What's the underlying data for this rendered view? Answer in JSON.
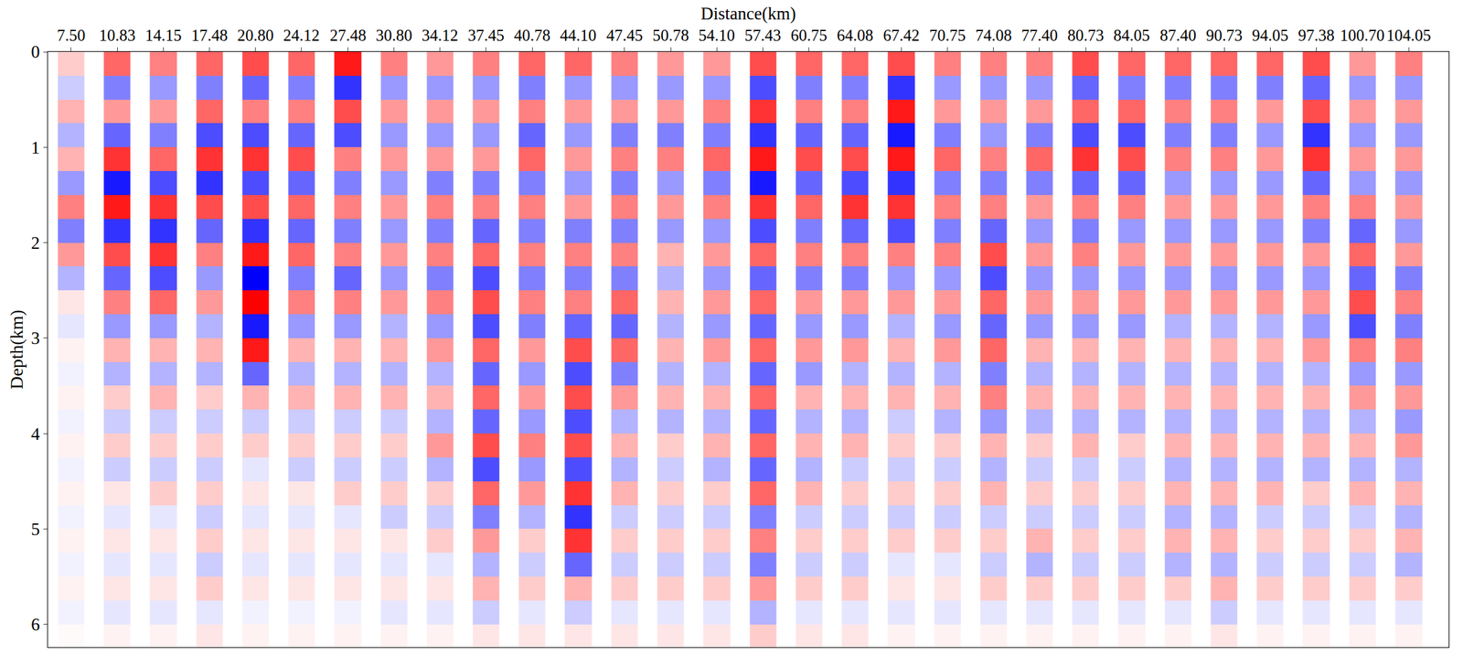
{
  "chart_data": {
    "type": "heatmap",
    "xlabel": "Distance(km)",
    "ylabel": "Depth(km)",
    "x": [
      7.5,
      10.83,
      14.15,
      17.48,
      20.8,
      24.12,
      27.48,
      30.8,
      34.12,
      37.45,
      40.78,
      44.1,
      47.45,
      50.78,
      54.1,
      57.43,
      60.75,
      64.08,
      67.42,
      70.75,
      74.08,
      77.4,
      80.73,
      84.05,
      87.4,
      90.73,
      94.05,
      97.38,
      100.7,
      104.05
    ],
    "y": [
      0.125,
      0.375,
      0.625,
      0.875,
      1.125,
      1.375,
      1.625,
      1.875,
      2.125,
      2.375,
      2.625,
      2.875,
      3.125,
      3.375,
      3.625,
      3.875,
      4.125,
      4.375,
      4.625,
      4.875,
      5.125,
      5.375,
      5.625,
      5.875,
      6.125
    ],
    "xlim": [
      5.82,
      106.94
    ],
    "ylim": [
      0,
      6.24
    ],
    "xticks": [
      {
        "value": 7.5,
        "label": "7.50"
      },
      10.83,
      14.15,
      17.48,
      {
        "value": 20.8,
        "label": "20.80"
      },
      24.12,
      27.48,
      {
        "value": 30.8,
        "label": "30.80"
      },
      34.12,
      37.45,
      40.78,
      {
        "value": 44.1,
        "label": "44.10"
      },
      47.45,
      50.78,
      {
        "value": 54.1,
        "label": "54.10"
      },
      57.43,
      60.75,
      64.08,
      67.42,
      70.75,
      74.08,
      {
        "value": 77.4,
        "label": "77.40"
      },
      80.73,
      84.05,
      {
        "value": 87.4,
        "label": "87.40"
      },
      90.73,
      94.05,
      97.38,
      {
        "value": 100.7,
        "label": "100.70"
      },
      104.05
    ],
    "yticks": [
      0,
      1,
      2,
      3,
      4,
      5,
      6
    ],
    "zlim": [
      -1,
      1
    ],
    "colors": [
      "#0000ff",
      "#ffffff",
      "#ff0000"
    ],
    "cells": [
      [
        0.2,
        -0.2,
        0.3,
        -0.3,
        0.3,
        -0.4,
        0.5,
        -0.5,
        0.4,
        -0.3,
        0.1,
        -0.1,
        0.05,
        -0.05,
        0.05,
        -0.05,
        0.05,
        -0.05,
        0.05,
        -0.05,
        0.05,
        -0.05,
        0.05,
        -0.05,
        0.02
      ],
      [
        0.6,
        -0.5,
        0.4,
        -0.6,
        0.8,
        -0.9,
        0.9,
        -0.8,
        0.7,
        -0.6,
        0.5,
        -0.4,
        0.3,
        -0.3,
        0.2,
        -0.2,
        0.2,
        -0.2,
        0.1,
        -0.1,
        0.1,
        -0.1,
        0.1,
        -0.1,
        0.05
      ],
      [
        0.5,
        -0.4,
        0.4,
        -0.5,
        0.6,
        -0.7,
        0.8,
        -0.8,
        0.8,
        -0.7,
        0.6,
        -0.4,
        0.3,
        -0.3,
        0.3,
        -0.2,
        0.2,
        -0.2,
        0.2,
        -0.1,
        0.1,
        -0.1,
        0.1,
        -0.1,
        0.05
      ],
      [
        0.6,
        -0.5,
        0.6,
        -0.7,
        0.8,
        -0.8,
        0.7,
        -0.6,
        0.5,
        -0.4,
        0.4,
        -0.3,
        0.3,
        -0.3,
        0.2,
        -0.2,
        0.2,
        -0.2,
        0.2,
        -0.2,
        0.2,
        -0.2,
        0.2,
        -0.1,
        0.1
      ],
      [
        0.7,
        -0.6,
        0.5,
        -0.7,
        0.8,
        -0.7,
        0.7,
        -0.8,
        0.9,
        -1,
        1,
        -0.9,
        0.9,
        -0.6,
        0.3,
        -0.2,
        0.2,
        -0.1,
        0.1,
        -0.1,
        0.1,
        -0.1,
        0.1,
        -0.05,
        0.05
      ],
      [
        0.6,
        -0.5,
        0.5,
        -0.6,
        0.7,
        -0.6,
        0.6,
        -0.6,
        0.6,
        -0.5,
        0.5,
        -0.4,
        0.3,
        -0.3,
        0.3,
        -0.2,
        0.2,
        -0.2,
        0.1,
        -0.1,
        0.1,
        -0.1,
        0.1,
        -0.05,
        0.05
      ],
      [
        0.9,
        -0.8,
        0.7,
        -0.7,
        0.5,
        -0.5,
        0.5,
        -0.5,
        0.5,
        -0.6,
        0.5,
        -0.4,
        0.3,
        -0.3,
        0.3,
        -0.2,
        0.2,
        -0.2,
        0.2,
        -0.1,
        0.1,
        -0.1,
        0.1,
        -0.05,
        0.05
      ],
      [
        0.5,
        -0.4,
        0.4,
        -0.4,
        0.4,
        -0.4,
        0.4,
        -0.4,
        0.4,
        -0.4,
        0.4,
        -0.3,
        0.3,
        -0.3,
        0.3,
        -0.2,
        0.2,
        -0.2,
        0.2,
        -0.2,
        0.1,
        -0.1,
        0.1,
        -0.1,
        0.05
      ],
      [
        0.4,
        -0.4,
        0.4,
        -0.4,
        0.4,
        -0.5,
        0.5,
        -0.5,
        0.5,
        -0.5,
        0.5,
        -0.4,
        0.4,
        -0.3,
        0.3,
        -0.3,
        0.4,
        -0.3,
        0.2,
        -0.2,
        0.2,
        -0.1,
        0.1,
        -0.1,
        0.05
      ],
      [
        0.5,
        -0.4,
        0.4,
        -0.4,
        0.4,
        -0.5,
        0.5,
        -0.6,
        0.6,
        -0.7,
        0.7,
        -0.7,
        0.6,
        -0.6,
        0.6,
        -0.6,
        0.7,
        -0.7,
        0.6,
        -0.5,
        0.4,
        -0.3,
        0.3,
        -0.2,
        0.1
      ],
      [
        0.6,
        -0.5,
        0.5,
        -0.6,
        0.6,
        -0.5,
        0.5,
        -0.5,
        0.5,
        -0.5,
        0.5,
        -0.5,
        0.4,
        -0.4,
        0.4,
        -0.4,
        0.5,
        -0.4,
        0.4,
        -0.3,
        0.2,
        -0.2,
        0.2,
        -0.1,
        0.1
      ],
      [
        0.6,
        -0.4,
        0.4,
        -0.4,
        0.4,
        -0.4,
        0.4,
        -0.5,
        0.5,
        -0.5,
        0.5,
        -0.6,
        0.7,
        -0.7,
        0.7,
        -0.7,
        0.7,
        -0.7,
        0.8,
        -0.8,
        0.8,
        -0.6,
        0.3,
        -0.2,
        0.1
      ],
      [
        0.5,
        -0.4,
        0.4,
        -0.5,
        0.5,
        -0.5,
        0.5,
        -0.5,
        0.5,
        -0.5,
        0.6,
        -0.6,
        0.6,
        -0.5,
        0.4,
        -0.3,
        0.3,
        -0.3,
        0.3,
        -0.2,
        0.2,
        -0.2,
        0.2,
        -0.1,
        0.1
      ],
      [
        0.4,
        -0.4,
        0.4,
        -0.5,
        0.5,
        -0.4,
        0.4,
        -0.4,
        0.3,
        -0.3,
        0.3,
        -0.3,
        0.3,
        -0.3,
        0.3,
        -0.3,
        0.2,
        -0.2,
        0.2,
        -0.2,
        0.2,
        -0.2,
        0.2,
        -0.1,
        0.1
      ],
      [
        0.4,
        -0.4,
        0.5,
        -0.5,
        0.6,
        -0.5,
        0.5,
        -0.4,
        0.4,
        -0.4,
        0.4,
        -0.4,
        0.4,
        -0.3,
        0.3,
        -0.3,
        0.3,
        -0.3,
        0.2,
        -0.2,
        0.2,
        -0.2,
        0.2,
        -0.1,
        0.1
      ],
      [
        0.7,
        -0.7,
        0.8,
        -0.8,
        0.9,
        -0.9,
        0.8,
        -0.7,
        0.6,
        -0.6,
        0.6,
        -0.6,
        0.6,
        -0.6,
        0.6,
        -0.6,
        0.6,
        -0.6,
        0.6,
        -0.5,
        0.5,
        -0.5,
        0.4,
        -0.3,
        0.2
      ],
      [
        0.6,
        -0.5,
        0.5,
        -0.6,
        0.7,
        -0.6,
        0.6,
        -0.5,
        0.5,
        -0.5,
        0.4,
        -0.4,
        0.4,
        -0.4,
        0.3,
        -0.3,
        0.3,
        -0.3,
        0.3,
        -0.2,
        0.2,
        -0.2,
        0.2,
        -0.1,
        0.1
      ],
      [
        0.6,
        -0.5,
        0.5,
        -0.6,
        0.7,
        -0.7,
        0.8,
        -0.6,
        0.5,
        -0.5,
        0.4,
        -0.4,
        0.4,
        -0.3,
        0.3,
        -0.3,
        0.3,
        -0.2,
        0.2,
        -0.2,
        0.2,
        -0.2,
        0.2,
        -0.1,
        0.1
      ],
      [
        0.7,
        -0.8,
        0.9,
        -0.9,
        0.9,
        -0.8,
        0.8,
        -0.7,
        0.5,
        -0.4,
        0.4,
        -0.3,
        0.3,
        -0.3,
        0.3,
        -0.2,
        0.2,
        -0.2,
        0.2,
        -0.2,
        0.2,
        -0.1,
        0.1,
        -0.1,
        0.05
      ],
      [
        0.5,
        -0.4,
        0.4,
        -0.5,
        0.6,
        -0.5,
        0.5,
        -0.5,
        0.5,
        -0.4,
        0.4,
        -0.4,
        0.4,
        -0.3,
        0.3,
        -0.3,
        0.2,
        -0.2,
        0.2,
        -0.2,
        0.2,
        -0.1,
        0.1,
        -0.1,
        0.05
      ],
      [
        0.5,
        -0.4,
        0.4,
        -0.4,
        0.5,
        -0.5,
        0.5,
        -0.6,
        0.7,
        -0.7,
        0.6,
        -0.6,
        0.6,
        -0.5,
        0.5,
        -0.4,
        0.3,
        -0.3,
        0.3,
        -0.2,
        0.2,
        -0.2,
        0.2,
        -0.1,
        0.05
      ],
      [
        0.5,
        -0.4,
        0.4,
        -0.5,
        0.6,
        -0.5,
        0.4,
        -0.4,
        0.4,
        -0.4,
        0.4,
        -0.4,
        0.3,
        -0.3,
        0.3,
        -0.3,
        0.2,
        -0.2,
        0.2,
        -0.2,
        0.3,
        -0.3,
        0.2,
        -0.1,
        0.05
      ],
      [
        0.7,
        -0.6,
        0.6,
        -0.7,
        0.8,
        -0.6,
        0.5,
        -0.5,
        0.5,
        -0.4,
        0.4,
        -0.4,
        0.3,
        -0.3,
        0.3,
        -0.3,
        0.3,
        -0.2,
        0.2,
        -0.2,
        0.2,
        -0.2,
        0.2,
        -0.1,
        0.05
      ],
      [
        0.6,
        -0.5,
        0.6,
        -0.7,
        0.7,
        -0.6,
        0.5,
        -0.4,
        0.4,
        -0.4,
        0.4,
        -0.4,
        0.3,
        -0.3,
        0.3,
        -0.3,
        0.2,
        -0.2,
        0.2,
        -0.2,
        0.2,
        -0.2,
        0.2,
        -0.1,
        0.05
      ],
      [
        0.6,
        -0.5,
        0.5,
        -0.5,
        0.5,
        -0.4,
        0.4,
        -0.4,
        0.4,
        -0.4,
        0.4,
        -0.3,
        0.3,
        -0.3,
        0.3,
        -0.3,
        0.3,
        -0.3,
        0.3,
        -0.3,
        0.3,
        -0.3,
        0.2,
        -0.1,
        0.05
      ],
      [
        0.6,
        -0.5,
        0.5,
        -0.5,
        0.5,
        -0.4,
        0.4,
        -0.4,
        0.4,
        -0.4,
        0.4,
        -0.3,
        0.3,
        -0.3,
        0.3,
        -0.3,
        0.3,
        -0.3,
        0.3,
        -0.3,
        0.3,
        -0.3,
        0.3,
        -0.2,
        0.1
      ],
      [
        0.6,
        -0.5,
        0.4,
        -0.4,
        0.4,
        -0.4,
        0.4,
        -0.4,
        0.4,
        -0.4,
        0.4,
        -0.3,
        0.3,
        -0.3,
        0.3,
        -0.3,
        0.3,
        -0.3,
        0.3,
        -0.2,
        0.2,
        -0.2,
        0.2,
        -0.1,
        0.05
      ],
      [
        0.7,
        -0.6,
        0.7,
        -0.8,
        0.8,
        -0.6,
        0.5,
        -0.5,
        0.4,
        -0.4,
        0.4,
        -0.4,
        0.4,
        -0.3,
        0.3,
        -0.3,
        0.3,
        -0.3,
        0.2,
        -0.2,
        0.2,
        -0.2,
        0.2,
        -0.1,
        0.05
      ],
      [
        0.4,
        -0.4,
        0.4,
        -0.4,
        0.4,
        -0.4,
        0.5,
        -0.6,
        0.6,
        -0.6,
        0.7,
        -0.7,
        0.5,
        -0.4,
        0.4,
        -0.3,
        0.3,
        -0.3,
        0.3,
        -0.2,
        0.2,
        -0.2,
        0.2,
        -0.1,
        0.05
      ],
      [
        0.5,
        -0.4,
        0.4,
        -0.4,
        0.4,
        -0.4,
        0.4,
        -0.4,
        0.4,
        -0.5,
        0.5,
        -0.5,
        0.5,
        -0.4,
        0.4,
        -0.4,
        0.4,
        -0.3,
        0.3,
        -0.3,
        0.3,
        -0.3,
        0.2,
        -0.1,
        0.05
      ]
    ]
  }
}
